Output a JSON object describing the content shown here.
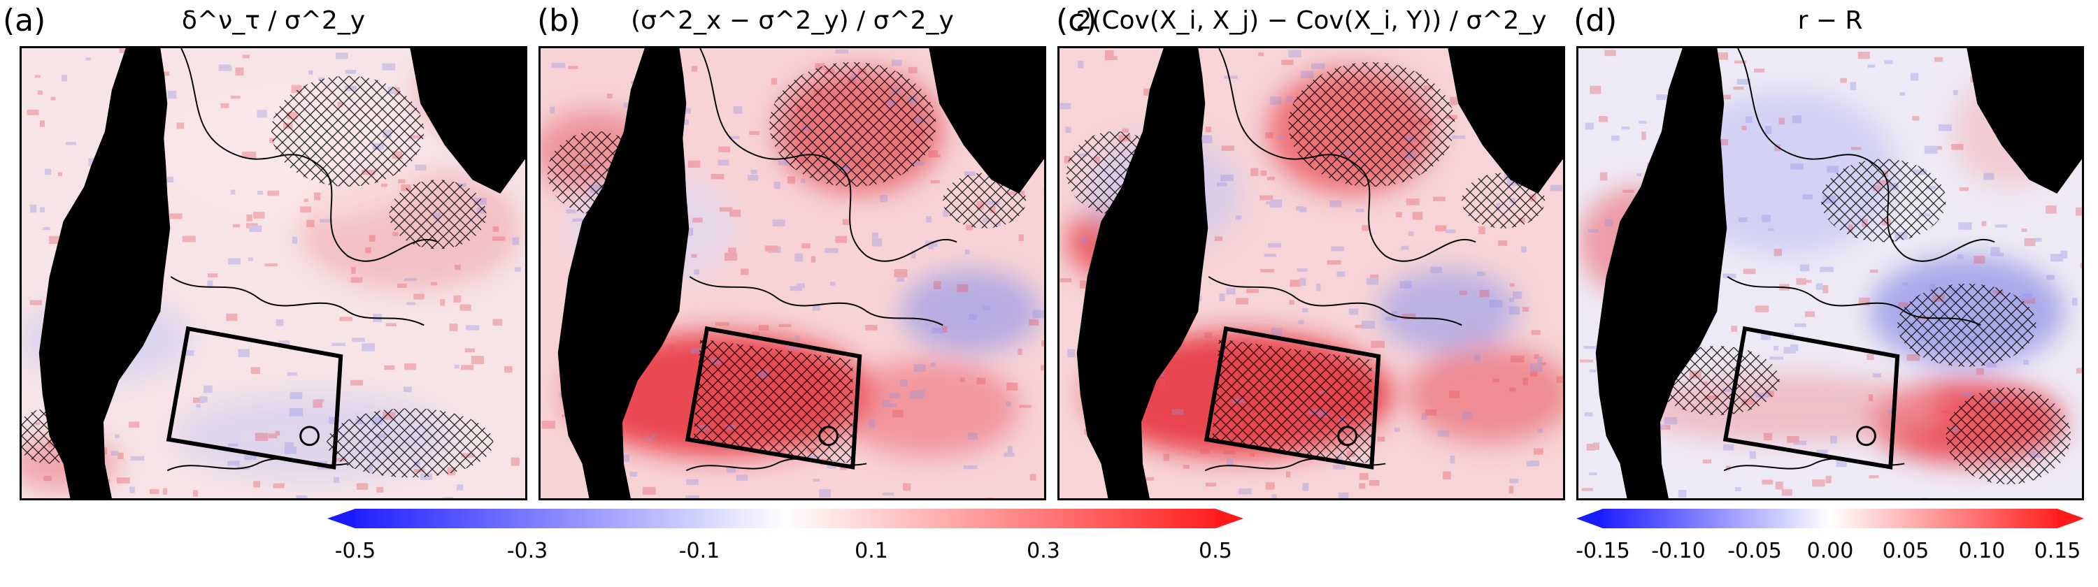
{
  "chart_data": [
    {
      "panel": "a",
      "label": "(a)",
      "title": "δ^ν_τ / σ^2_y",
      "type": "heatmap",
      "colorbar": "left"
    },
    {
      "panel": "b",
      "label": "(b)",
      "title": "(σ^2_x − σ^2_y) / σ^2_y",
      "type": "heatmap",
      "colorbar": "left"
    },
    {
      "panel": "c",
      "label": "(c)",
      "title": "2(Cov(X_i, X_j) − Cov(X_i, Y)) / σ^2_y",
      "type": "heatmap",
      "colorbar": "left"
    },
    {
      "panel": "d",
      "label": "(d)",
      "title": "r − R",
      "type": "heatmap",
      "colorbar": "right"
    }
  ],
  "colorbar_left": {
    "ticks": [
      "-0.5",
      "-0.3",
      "-0.1",
      "0.1",
      "0.3",
      "0.5"
    ],
    "range": [
      -0.5,
      0.5
    ],
    "extend": "both",
    "colormap": [
      "#1f1fff",
      "#ffffff",
      "#ff1f1f"
    ]
  },
  "colorbar_right": {
    "ticks": [
      "-0.15",
      "-0.10",
      "-0.05",
      "0.00",
      "0.05",
      "0.10",
      "0.15"
    ],
    "range": [
      -0.15,
      0.15
    ],
    "extend": "both",
    "colormap": [
      "#1f1fff",
      "#ffffff",
      "#ff1f1f"
    ]
  },
  "colors": {
    "land": "#000000",
    "hatch": "#000000",
    "box": "#000000"
  }
}
